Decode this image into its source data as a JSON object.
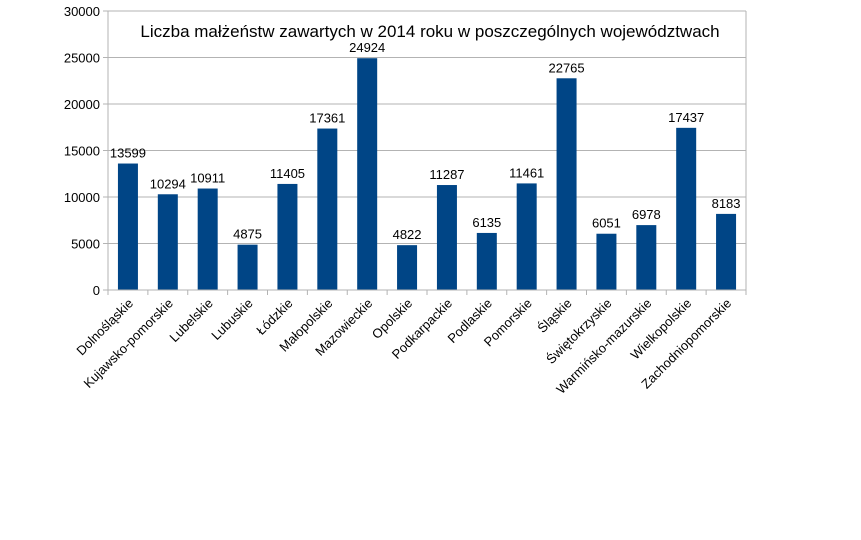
{
  "chart_data": {
    "type": "bar",
    "title": "Liczba małżeństw zawartych w 2014 roku w poszczególnych województwach",
    "categories": [
      "Dolnośląskie",
      "Kujawsko-pomorskie",
      "Lubelskie",
      "Lubuskie",
      "Łódzkie",
      "Małopolskie",
      "Mazowieckie",
      "Opolskie",
      "Podkarpackie",
      "Podlaskie",
      "Pomorskie",
      "Śląskie",
      "Świętokrzyskie",
      "Warmińsko-mazurskie",
      "Wielkopolskie",
      "Zachodniopomorskie"
    ],
    "values": [
      13599,
      10294,
      10911,
      4875,
      11405,
      17361,
      24924,
      4822,
      11287,
      6135,
      11461,
      22765,
      6051,
      6978,
      17437,
      8183
    ],
    "ylim": [
      0,
      30000
    ],
    "yticks": [
      0,
      5000,
      10000,
      15000,
      20000,
      25000,
      30000
    ],
    "xlabel": "",
    "ylabel": "",
    "grid": true,
    "legend": "none",
    "data_labels": true,
    "bar_color": "#004586"
  }
}
